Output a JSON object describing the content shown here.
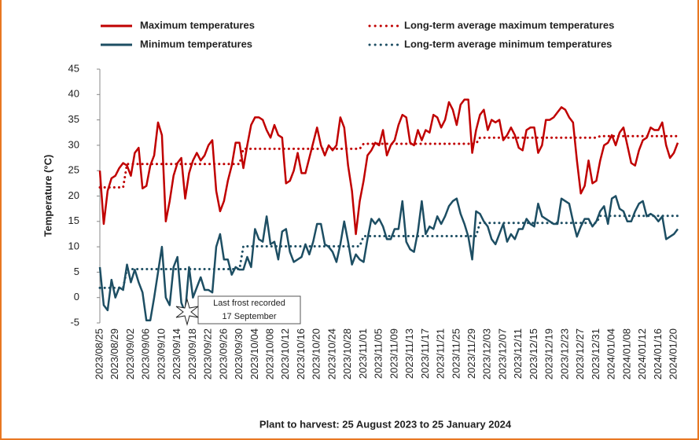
{
  "chart_data": {
    "type": "line",
    "y_label": "Temperature (°C)",
    "x_label": "Plant to harvest: 25 August 2023 to 25 January 2024",
    "annotation": [
      "Last frost recorded",
      "17 September"
    ],
    "ylim": [
      -5,
      45
    ],
    "yticks": [
      -5,
      0,
      5,
      10,
      15,
      20,
      25,
      30,
      35,
      40,
      45
    ],
    "categories": [
      "2023/08/25",
      null,
      null,
      null,
      "2023/08/29",
      null,
      null,
      null,
      "2023/09/02",
      null,
      null,
      null,
      "2023/09/06",
      null,
      null,
      null,
      "2023/09/10",
      null,
      null,
      null,
      "2023/09/14",
      null,
      null,
      null,
      "2023/09/18",
      null,
      null,
      null,
      "2023/09/22",
      null,
      null,
      null,
      "2023/09/26",
      null,
      null,
      null,
      "2023/09/30",
      null,
      null,
      null,
      "2023/10/04",
      null,
      null,
      null,
      "2023/10/08",
      null,
      null,
      null,
      "2023/10/12",
      null,
      null,
      null,
      "2023/10/16",
      null,
      null,
      null,
      "2023/10/20",
      null,
      null,
      null,
      "2023/10/24",
      null,
      null,
      null,
      "2023/10/28",
      null,
      null,
      null,
      "2023/11/01",
      null,
      null,
      null,
      "2023/11/05",
      null,
      null,
      null,
      "2023/11/09",
      null,
      null,
      null,
      "2023/11/13",
      null,
      null,
      null,
      "2023/11/17",
      null,
      null,
      null,
      "2023/11/21",
      null,
      null,
      null,
      "2023/11/25",
      null,
      null,
      null,
      "2023/11/29",
      null,
      null,
      null,
      "2023/12/03",
      null,
      null,
      null,
      "2023/12/07",
      null,
      null,
      null,
      "2023/12/11",
      null,
      null,
      null,
      "2023/12/15",
      null,
      null,
      null,
      "2023/12/19",
      null,
      null,
      null,
      "2023/12/23",
      null,
      null,
      null,
      "2023/12/27",
      null,
      null,
      null,
      "2023/12/31",
      null,
      null,
      null,
      "2024/01/04",
      null,
      null,
      null,
      "2024/01/08",
      null,
      null,
      null,
      "2024/01/12",
      null,
      null,
      null,
      "2024/01/16",
      null,
      null,
      null,
      "2024/01/20",
      null
    ],
    "series": [
      {
        "name": "Maximum temperatures",
        "color": "#c00000",
        "style": "solid",
        "values": [
          25,
          14.5,
          21,
          23.5,
          24,
          25.5,
          26.5,
          26,
          24,
          28.5,
          29.5,
          21.5,
          22,
          26,
          28,
          34.5,
          32,
          15,
          19,
          24,
          26.5,
          27.5,
          19.5,
          24.5,
          27,
          28.5,
          27,
          28,
          30,
          31,
          21,
          17,
          19,
          23,
          26,
          30.5,
          30.5,
          25.5,
          30,
          34,
          35.5,
          35.5,
          35,
          33,
          31.5,
          34,
          32,
          31.5,
          22.5,
          23,
          25,
          28.5,
          24.5,
          24.5,
          27.5,
          30.5,
          33.5,
          30,
          28,
          30,
          29,
          30,
          35.5,
          33.5,
          26,
          21,
          12.5,
          19,
          23,
          28,
          29,
          30.5,
          30,
          33,
          28,
          30,
          31,
          34,
          36,
          35.5,
          30.5,
          30,
          33,
          31,
          33,
          32.5,
          36,
          35.5,
          33.5,
          35,
          38.5,
          37,
          34,
          38,
          39,
          39,
          28.5,
          33,
          36,
          37,
          33,
          35,
          34.5,
          35,
          31,
          32,
          33.5,
          32,
          29.5,
          29,
          33,
          33.5,
          33.5,
          28.5,
          30,
          35,
          35,
          35.5,
          36.5,
          37.5,
          37,
          35.5,
          34.5,
          27,
          20.5,
          22,
          27,
          22.5,
          23,
          27,
          30,
          30.5,
          32,
          30,
          32.5,
          33.5,
          30,
          26.5,
          26,
          29,
          31,
          31.5,
          33.5,
          33,
          33,
          34.5,
          30,
          27.5,
          28.5,
          30.5
        ]
      },
      {
        "name": "Minimum temperatures",
        "color": "#1d4e63",
        "style": "solid",
        "values": [
          6,
          -1.5,
          -2.5,
          3.5,
          0,
          2,
          1.5,
          6.5,
          3,
          5.5,
          3,
          1,
          -4.5,
          -4.5,
          0,
          5,
          10,
          0,
          -1.5,
          6,
          8,
          -1,
          -3,
          6,
          0,
          2,
          4,
          1.5,
          1.5,
          1,
          10,
          12.5,
          7.5,
          7.5,
          4.5,
          6,
          5.5,
          5.5,
          8,
          6,
          13.5,
          11.5,
          11,
          16,
          10.5,
          11,
          7.5,
          13,
          13.5,
          9,
          7,
          7.5,
          8,
          10.5,
          8.5,
          11,
          14.5,
          14.5,
          10.5,
          10,
          9,
          7,
          10.5,
          15,
          11,
          6.5,
          8.5,
          7.5,
          7,
          11.5,
          15.5,
          14.5,
          15.5,
          14,
          11.5,
          11.5,
          13.5,
          13.5,
          19,
          11,
          9.5,
          9,
          13,
          19,
          12.5,
          14,
          13.5,
          16,
          14.5,
          16,
          18,
          19,
          19.5,
          16.5,
          14.5,
          12,
          7.5,
          17,
          16.5,
          15,
          14,
          11.5,
          10.5,
          12.5,
          14.5,
          11,
          12.5,
          11.5,
          13.5,
          13.5,
          15.5,
          14.5,
          14,
          18.5,
          16,
          15.5,
          15,
          14.5,
          14.5,
          19.5,
          19,
          18.5,
          15,
          12,
          14,
          15.5,
          15.5,
          14,
          15,
          17,
          18,
          14.5,
          19.5,
          20,
          17.5,
          17,
          15,
          15,
          17,
          18.5,
          19,
          16,
          16.5,
          16,
          15,
          16,
          11.5,
          12,
          12.5,
          13.5
        ]
      },
      {
        "name": "Long-term average maximum temperatures",
        "color": "#c00000",
        "style": "dotted",
        "values": [
          21.7,
          21.7,
          21.7,
          21.7,
          21.7,
          21.7,
          21.7,
          26.3,
          26.3,
          26.3,
          26.3,
          26.3,
          26.3,
          26.3,
          26.3,
          26.3,
          26.3,
          26.3,
          26.3,
          26.3,
          26.3,
          26.3,
          26.3,
          26.3,
          26.3,
          26.3,
          26.3,
          26.3,
          26.3,
          26.3,
          26.3,
          26.3,
          26.3,
          26.3,
          26.3,
          26.3,
          26.3,
          29.3,
          29.3,
          29.3,
          29.3,
          29.3,
          29.3,
          29.3,
          29.3,
          29.3,
          29.3,
          29.3,
          29.3,
          29.3,
          29.3,
          29.3,
          29.3,
          29.3,
          29.3,
          29.3,
          29.3,
          29.3,
          29.3,
          29.3,
          29.3,
          29.3,
          29.3,
          29.3,
          29.3,
          29.3,
          29.3,
          29.3,
          30.3,
          30.3,
          30.3,
          30.3,
          30.3,
          30.3,
          30.3,
          30.3,
          30.3,
          30.3,
          30.3,
          30.3,
          30.3,
          30.3,
          30.3,
          30.3,
          30.3,
          30.3,
          30.3,
          30.3,
          30.3,
          30.3,
          30.3,
          30.3,
          30.3,
          30.3,
          30.3,
          30.3,
          30.3,
          30.3,
          31.5,
          31.5,
          31.5,
          31.5,
          31.5,
          31.5,
          31.5,
          31.5,
          31.5,
          31.5,
          31.5,
          31.5,
          31.5,
          31.5,
          31.5,
          31.5,
          31.5,
          31.5,
          31.5,
          31.5,
          31.5,
          31.5,
          31.5,
          31.5,
          31.5,
          31.5,
          31.5,
          31.5,
          31.5,
          31.5,
          31.5,
          31.8,
          31.8,
          31.8,
          31.8,
          31.8,
          31.8,
          31.8,
          31.8,
          31.8,
          31.8,
          31.8,
          31.8,
          31.8,
          31.8,
          31.8,
          31.8,
          31.8,
          31.8,
          31.8,
          31.8,
          31.8
        ]
      },
      {
        "name": "Long-term average minimum temperatures",
        "color": "#1d4e63",
        "style": "dotted",
        "values": [
          1.9,
          1.9,
          1.9,
          1.9,
          1.9,
          1.9,
          1.9,
          5.6,
          5.6,
          5.6,
          5.6,
          5.6,
          5.6,
          5.6,
          5.6,
          5.6,
          5.6,
          5.6,
          5.6,
          5.6,
          5.6,
          5.6,
          5.6,
          5.6,
          5.6,
          5.6,
          5.6,
          5.6,
          5.6,
          5.6,
          5.6,
          5.6,
          5.6,
          5.6,
          5.6,
          5.6,
          5.6,
          10.1,
          10.1,
          10.1,
          10.1,
          10.1,
          10.1,
          10.1,
          10.1,
          10.1,
          10.1,
          10.1,
          10.1,
          10.1,
          10.1,
          10.1,
          10.1,
          10.1,
          10.1,
          10.1,
          10.1,
          10.1,
          10.1,
          10.1,
          10.1,
          10.1,
          10.1,
          10.1,
          10.1,
          10.1,
          10.1,
          10.1,
          12.1,
          12.1,
          12.1,
          12.1,
          12.1,
          12.1,
          12.1,
          12.1,
          12.1,
          12.1,
          12.1,
          12.1,
          12.1,
          12.1,
          12.1,
          12.1,
          12.1,
          12.1,
          12.1,
          12.1,
          12.1,
          12.1,
          12.1,
          12.1,
          12.1,
          12.1,
          12.1,
          12.1,
          12.1,
          12.1,
          14.7,
          14.7,
          14.7,
          14.7,
          14.7,
          14.7,
          14.7,
          14.7,
          14.7,
          14.7,
          14.7,
          14.7,
          14.7,
          14.7,
          14.7,
          14.7,
          14.7,
          14.7,
          14.7,
          14.7,
          14.7,
          14.7,
          14.7,
          14.7,
          14.7,
          14.7,
          14.7,
          14.7,
          14.7,
          14.7,
          14.7,
          16.1,
          16.1,
          16.1,
          16.1,
          16.1,
          16.1,
          16.1,
          16.1,
          16.1,
          16.1,
          16.1,
          16.1,
          16.1,
          16.1,
          16.1,
          16.1,
          16.1,
          16.1,
          16.1,
          16.1,
          16.1
        ]
      }
    ]
  }
}
